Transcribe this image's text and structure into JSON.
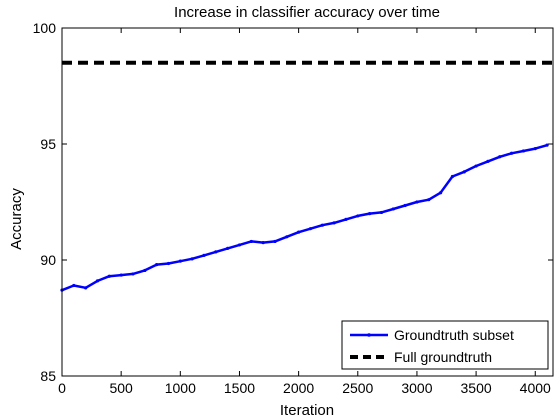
{
  "chart_data": {
    "type": "line",
    "title": "Increase in classifier accuracy over time",
    "xlabel": "Iteration",
    "ylabel": "Accuracy",
    "xlim": [
      0,
      4150
    ],
    "ylim": [
      85,
      100
    ],
    "xticks": [
      0,
      500,
      1000,
      1500,
      2000,
      2500,
      3000,
      3500,
      4000
    ],
    "yticks": [
      85,
      90,
      95,
      100
    ],
    "grid": false,
    "legend_position": "bottom-right",
    "series": [
      {
        "name": "Groundtruth subset",
        "color": "#0000ff",
        "style": "solid-with-point-markers",
        "x": [
          0,
          100,
          200,
          300,
          400,
          500,
          600,
          700,
          800,
          900,
          1000,
          1100,
          1200,
          1300,
          1400,
          1500,
          1600,
          1700,
          1800,
          1900,
          2000,
          2100,
          2200,
          2300,
          2400,
          2500,
          2600,
          2700,
          2800,
          2900,
          3000,
          3100,
          3200,
          3300,
          3400,
          3500,
          3600,
          3700,
          3800,
          3900,
          4000,
          4100
        ],
        "y": [
          88.7,
          88.9,
          88.8,
          89.1,
          89.3,
          89.35,
          89.4,
          89.55,
          89.8,
          89.85,
          89.95,
          90.05,
          90.2,
          90.35,
          90.5,
          90.65,
          90.8,
          90.75,
          90.8,
          91.0,
          91.2,
          91.35,
          91.5,
          91.6,
          91.75,
          91.9,
          92.0,
          92.05,
          92.2,
          92.35,
          92.5,
          92.6,
          92.9,
          93.6,
          93.8,
          94.05,
          94.25,
          94.45,
          94.6,
          94.7,
          94.8,
          94.95
        ]
      },
      {
        "name": "Full groundtruth",
        "color": "#000000",
        "style": "dashed",
        "x": [
          0,
          4150
        ],
        "y": [
          98.5,
          98.5
        ]
      }
    ]
  }
}
